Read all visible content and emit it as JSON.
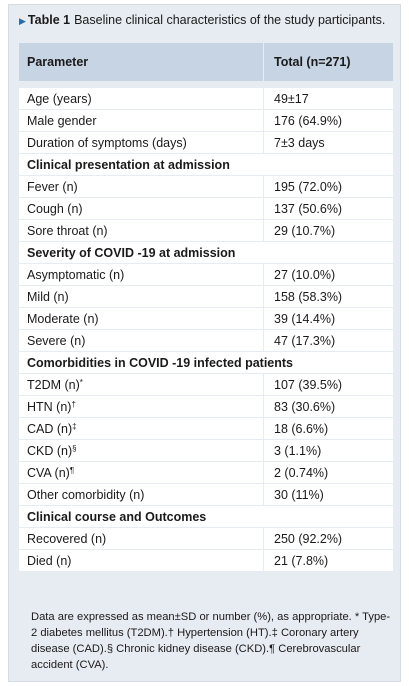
{
  "caption": {
    "label": "Table 1",
    "text": "Baseline clinical characteristics of the study participants."
  },
  "header": {
    "parameter": "Parameter",
    "total": "Total (n=271)"
  },
  "rows": [
    {
      "label": "Age (years)",
      "sup": "",
      "value": "49±17",
      "section": false
    },
    {
      "label": "Male gender",
      "sup": "",
      "value": "176 (64.9%)",
      "section": false
    },
    {
      "label": "Duration of symptoms (days)",
      "sup": "",
      "value": "7±3 days",
      "section": false
    },
    {
      "label": "Clinical presentation at admission",
      "sup": "",
      "value": "",
      "section": true
    },
    {
      "label": "Fever (n)",
      "sup": "",
      "value": "195 (72.0%)",
      "section": false
    },
    {
      "label": "Cough (n)",
      "sup": "",
      "value": "137 (50.6%)",
      "section": false
    },
    {
      "label": "Sore throat (n)",
      "sup": "",
      "value": "29 (10.7%)",
      "section": false
    },
    {
      "label": "Severity of COVID -19 at admission",
      "sup": "",
      "value": "",
      "section": true
    },
    {
      "label": "Asymptomatic (n)",
      "sup": "",
      "value": "27 (10.0%)",
      "section": false
    },
    {
      "label": "Mild (n)",
      "sup": "",
      "value": "158 (58.3%)",
      "section": false
    },
    {
      "label": "Moderate (n)",
      "sup": "",
      "value": "39 (14.4%)",
      "section": false
    },
    {
      "label": "Severe (n)",
      "sup": "",
      "value": "47 (17.3%)",
      "section": false
    },
    {
      "label": "Comorbidities in COVID -19 infected patients",
      "sup": "",
      "value": "",
      "section": true
    },
    {
      "label": "T2DM (n)",
      "sup": "*",
      "value": "107 (39.5%)",
      "section": false
    },
    {
      "label": "HTN (n)",
      "sup": "†",
      "value": "83 (30.6%)",
      "section": false
    },
    {
      "label": "CAD (n)",
      "sup": "‡",
      "value": "18 (6.6%)",
      "section": false
    },
    {
      "label": "CKD (n)",
      "sup": "§",
      "value": "3 (1.1%)",
      "section": false
    },
    {
      "label": "CVA (n)",
      "sup": "¶",
      "value": "2 (0.74%)",
      "section": false
    },
    {
      "label": "Other comorbidity (n)",
      "sup": "",
      "value": "30 (11%)",
      "section": false
    },
    {
      "label": "Clinical course and Outcomes",
      "sup": "",
      "value": "",
      "section": true
    },
    {
      "label": "Recovered (n)",
      "sup": "",
      "value": "250 (92.2%)",
      "section": false
    },
    {
      "label": "Died (n)",
      "sup": "",
      "value": "21 (7.8%)",
      "section": false
    }
  ],
  "footnote": "Data are expressed as mean±SD or number (%), as appropriate. * Type-2 diabetes mellitus (T2DM).† Hypertension (HT).‡ Coronary artery disease (CAD).§ Chronic kidney disease (CKD).¶ Cerebrovascular accident (CVA).",
  "colors": {
    "panel": "#e7ecf2",
    "header": "#c6d4e3",
    "accent": "#1f6fb3"
  }
}
